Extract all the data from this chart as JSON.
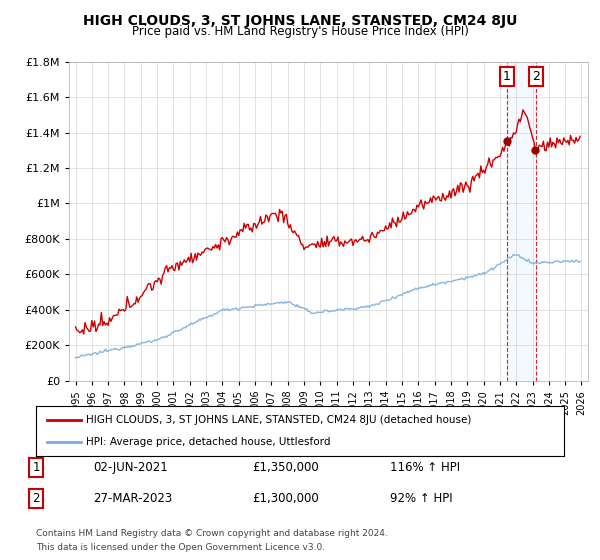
{
  "title": "HIGH CLOUDS, 3, ST JOHNS LANE, STANSTED, CM24 8JU",
  "subtitle": "Price paid vs. HM Land Registry's House Price Index (HPI)",
  "legend_line1": "HIGH CLOUDS, 3, ST JOHNS LANE, STANSTED, CM24 8JU (detached house)",
  "legend_line2": "HPI: Average price, detached house, Uttlesford",
  "sale1_date": "02-JUN-2021",
  "sale1_price": "£1,350,000",
  "sale1_label": "116% ↑ HPI",
  "sale1_num": "1",
  "sale2_date": "27-MAR-2023",
  "sale2_price": "£1,300,000",
  "sale2_label": "92% ↑ HPI",
  "sale2_num": "2",
  "footer1": "Contains HM Land Registry data © Crown copyright and database right 2024.",
  "footer2": "This data is licensed under the Open Government Licence v3.0.",
  "red_color": "#cc0000",
  "blue_color": "#7aadda",
  "shade_color": "#ddeeff",
  "marker_box_color": "#cc0000",
  "ylim_max": 1800000,
  "sale1_t": 2021.417,
  "sale2_t": 2023.208,
  "sale1_val": 1350000,
  "sale2_val": 1300000
}
